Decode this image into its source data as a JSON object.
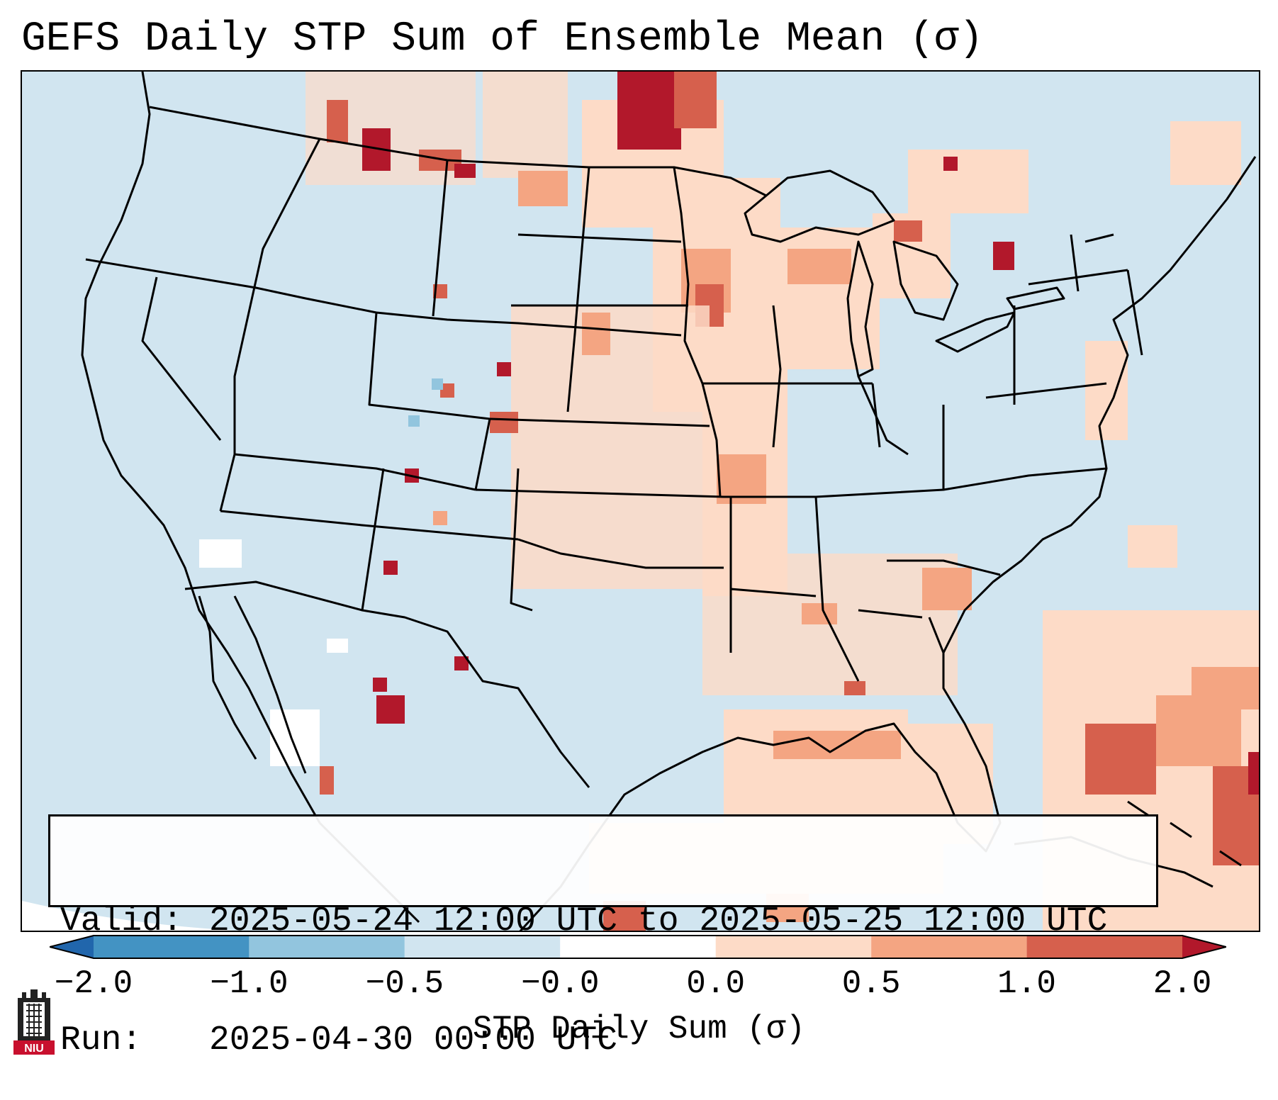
{
  "title": "GEFS Daily STP Sum of Ensemble Mean (σ)",
  "info": {
    "valid_label": "Valid:",
    "valid_value": "2025-05-24 12:00 UTC to 2025-05-25 12:00 UTC",
    "run_label": "Run:",
    "run_value": "2025-04-30 00:00 UTC"
  },
  "colorbar": {
    "label": "STP Daily Sum (σ)",
    "ticks": [
      "−2.0",
      "−1.0",
      "−0.5",
      "−0.0",
      "0.0",
      "0.5",
      "1.0",
      "2.0"
    ],
    "colors": [
      "#4393c3",
      "#92c5de",
      "#d1e5f0",
      "#ffffff",
      "#fddbc7",
      "#f4a582",
      "#d6604d",
      "#b2182b"
    ],
    "under_color": "#2166ac",
    "over_color": "#b2182b"
  },
  "map": {
    "background_color": "#d1e5f0",
    "coast_color": "#000000",
    "regions": [
      "Northern Plains",
      "Canadian Prairies",
      "Upper Midwest",
      "Great Lakes",
      "Southern Plains",
      "Gulf of Mexico",
      "Western Atlantic",
      "Northern Mexico",
      "Quebec"
    ]
  },
  "logo": {
    "text": "NIU",
    "icon": "university-tower-icon"
  }
}
